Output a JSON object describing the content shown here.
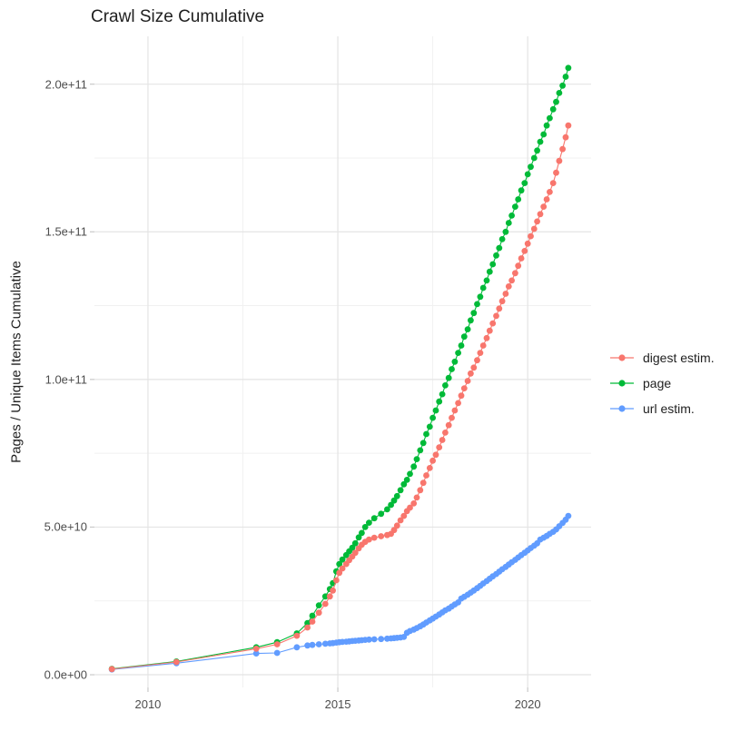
{
  "title": "Crawl Size Cumulative",
  "colors": {
    "background": "#ffffff",
    "grid_major": "#e4e4e4",
    "grid_minor": "#f1f1f1",
    "tick_mark": "#c9c9c9",
    "title_text": "#1f1f1f",
    "tick_text": "#4d4d4d",
    "digest": "#F8766D",
    "page": "#00BA38",
    "url": "#619CFF"
  },
  "legend": {
    "items": [
      {
        "label": "digest estim.",
        "color": "#F8766D"
      },
      {
        "label": "page",
        "color": "#00BA38"
      },
      {
        "label": "url estim.",
        "color": "#619CFF"
      }
    ]
  },
  "chart_data": {
    "type": "line",
    "title": "Crawl Size Cumulative",
    "xlabel": "",
    "ylabel": "Pages / Unique Items Cumulative",
    "y_unit": "items (values_billions are in units of 1e9)",
    "xlim": [
      2008.59,
      2021.67
    ],
    "ylim_billions": [
      -4.3,
      216.2
    ],
    "grid": true,
    "legend_position": "right",
    "x_ticks": {
      "major": [
        2010,
        2015,
        2020
      ],
      "labels": [
        "2010",
        "2015",
        "2020"
      ],
      "minor": [
        2012.5,
        2017.5
      ]
    },
    "y_ticks": {
      "major_billions": [
        0,
        50,
        100,
        150,
        200
      ],
      "labels": [
        "0.0e+00",
        "5.0e+10",
        "1.0e+11",
        "1.5e+11",
        "2.0e+11"
      ],
      "minor_billions": [
        25,
        75,
        125,
        175
      ]
    },
    "x_years": [
      2009.05,
      2010.75,
      2012.85,
      2013.4,
      2013.92,
      2014.2,
      2014.33,
      2014.5,
      2014.67,
      2014.79,
      2014.87,
      2014.96,
      2015.04,
      2015.12,
      2015.22,
      2015.3,
      2015.38,
      2015.46,
      2015.55,
      2015.63,
      2015.72,
      2015.82,
      2015.96,
      2016.14,
      2016.3,
      2016.4,
      2016.48,
      2016.56,
      2016.65,
      2016.74,
      2016.82,
      2016.9,
      2017.0,
      2017.08,
      2017.17,
      2017.25,
      2017.33,
      2017.42,
      2017.5,
      2017.58,
      2017.67,
      2017.75,
      2017.83,
      2017.92,
      2018.0,
      2018.08,
      2018.17,
      2018.25,
      2018.33,
      2018.42,
      2018.5,
      2018.58,
      2018.67,
      2018.75,
      2018.83,
      2018.92,
      2019.0,
      2019.08,
      2019.17,
      2019.25,
      2019.33,
      2019.42,
      2019.5,
      2019.58,
      2019.67,
      2019.75,
      2019.83,
      2019.92,
      2020.0,
      2020.08,
      2020.17,
      2020.25,
      2020.33,
      2020.42,
      2020.5,
      2020.58,
      2020.67,
      2020.75,
      2020.83,
      2020.92,
      2021.0,
      2021.07
    ],
    "series": [
      {
        "name": "url estim.",
        "color": "#619CFF",
        "values_billions": [
          1.8,
          3.9,
          7.2,
          7.4,
          9.3,
          9.9,
          10.1,
          10.3,
          10.5,
          10.6,
          10.7,
          10.9,
          11.0,
          11.1,
          11.2,
          11.3,
          11.4,
          11.5,
          11.6,
          11.7,
          11.8,
          11.9,
          12.0,
          12.1,
          12.2,
          12.3,
          12.4,
          12.5,
          12.6,
          12.8,
          14.2,
          14.8,
          15.3,
          15.8,
          16.4,
          17.0,
          17.7,
          18.4,
          19.0,
          19.7,
          20.4,
          21.1,
          21.8,
          22.4,
          23.1,
          23.8,
          24.5,
          25.8,
          26.4,
          27.1,
          27.8,
          28.5,
          29.3,
          30.1,
          30.9,
          31.7,
          32.5,
          33.3,
          34.1,
          34.9,
          35.7,
          36.5,
          37.3,
          38.1,
          38.9,
          39.7,
          40.5,
          41.3,
          42.1,
          42.9,
          43.7,
          44.5,
          45.8,
          46.4,
          47.0,
          47.7,
          48.4,
          49.2,
          50.3,
          51.4,
          52.5,
          53.8
        ]
      },
      {
        "name": "page",
        "color": "#00BA38",
        "values_billions": [
          2.0,
          4.5,
          9.3,
          11.0,
          14.0,
          17.5,
          20.0,
          23.5,
          26.5,
          29.0,
          31.0,
          35.0,
          37.5,
          39.0,
          40.5,
          41.8,
          43.0,
          44.5,
          46.5,
          48.0,
          50.0,
          51.5,
          53.0,
          54.5,
          56.0,
          57.5,
          59.0,
          60.5,
          62.5,
          64.5,
          66.0,
          68.0,
          70.5,
          73.0,
          76.0,
          78.5,
          81.5,
          84.0,
          87.0,
          89.5,
          92.5,
          95.0,
          98.0,
          100.5,
          103.5,
          106.0,
          109.0,
          111.5,
          114.5,
          117.0,
          120.0,
          122.5,
          125.5,
          128.0,
          131.0,
          133.5,
          136.5,
          139.0,
          142.0,
          144.5,
          147.5,
          150.0,
          153.0,
          155.5,
          158.5,
          161.0,
          164.0,
          166.5,
          169.5,
          172.0,
          175.0,
          177.5,
          180.5,
          183.0,
          186.0,
          188.5,
          191.5,
          194.0,
          197.0,
          199.5,
          202.5,
          205.5
        ]
      },
      {
        "name": "digest estim.",
        "color": "#F8766D",
        "values_billions": [
          1.9,
          4.3,
          8.8,
          10.3,
          13.2,
          16.0,
          18.0,
          21.0,
          24.0,
          26.5,
          28.5,
          32.0,
          34.5,
          36.0,
          37.5,
          38.8,
          40.0,
          41.3,
          42.8,
          44.0,
          45.0,
          45.8,
          46.4,
          46.9,
          47.3,
          47.7,
          49.0,
          50.5,
          52.3,
          53.8,
          55.4,
          56.6,
          58.0,
          60.0,
          62.5,
          65.0,
          67.5,
          70.0,
          72.5,
          74.5,
          77.0,
          79.5,
          82.0,
          84.5,
          87.0,
          89.5,
          92.0,
          94.5,
          97.0,
          99.5,
          102.0,
          104.0,
          106.5,
          109.0,
          111.5,
          114.0,
          116.5,
          119.0,
          121.5,
          124.0,
          126.5,
          129.0,
          131.5,
          133.5,
          136.0,
          138.5,
          141.0,
          143.5,
          146.0,
          148.5,
          151.0,
          153.5,
          156.0,
          158.5,
          161.0,
          163.5,
          166.5,
          170.0,
          174.0,
          178.0,
          182.0,
          186.0
        ]
      }
    ]
  }
}
